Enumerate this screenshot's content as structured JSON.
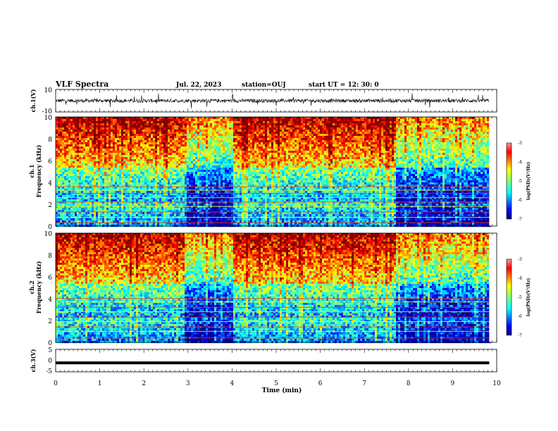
{
  "header": {
    "title": "VLF Spectra",
    "date": "Jul. 22, 2023",
    "station": "station=OUJ",
    "start": "start  UT =  12: 30: 0"
  },
  "chart_data": [
    {
      "type": "line",
      "panel": "waveform-ch1",
      "ylabel": "ch.1(V)",
      "ylim": [
        -10,
        10
      ],
      "y_ticks": [
        "10",
        "-10"
      ],
      "x_range_min": [
        0,
        9.83
      ],
      "description_values": "broadband noise waveform around 0 V with frequent spikes up to about ±8 V"
    },
    {
      "type": "heatmap",
      "panel": "spectrogram-ch1",
      "ylabel_lines": [
        "ch.1",
        "Frequency  (kHz)"
      ],
      "ylim": [
        0,
        10
      ],
      "y_ticks": [
        "0",
        "2",
        "4",
        "6",
        "8",
        "10"
      ],
      "colorbar": {
        "label": "log(PSD)(V²/Hz)",
        "range": [
          -7,
          -3
        ],
        "ticks": [
          "-3",
          "-4",
          "-5",
          "-6",
          "-7"
        ]
      },
      "bands_kHz": [
        0.3,
        0.8,
        1.3,
        1.8,
        2.2,
        2.6,
        3.0,
        3.3,
        3.6
      ],
      "quiet_intervals_min": [
        [
          2.9,
          4.0
        ],
        [
          7.7,
          9.83
        ]
      ]
    },
    {
      "type": "heatmap",
      "panel": "spectrogram-ch2",
      "ylabel_lines": [
        "ch.2",
        "Frequency  (kHz)"
      ],
      "ylim": [
        0,
        10
      ],
      "y_ticks": [
        "0",
        "2",
        "4",
        "6",
        "8",
        "10"
      ],
      "colorbar": {
        "label": "log(PSD)(V²/Hz)",
        "range": [
          -7,
          -3
        ],
        "ticks": [
          "-3",
          "-4",
          "-5",
          "-6",
          "-7"
        ]
      },
      "bands_kHz": [
        0.4,
        1.0,
        1.4,
        1.9,
        2.3,
        2.8,
        3.2,
        3.7,
        4.0
      ],
      "quiet_intervals_min": [
        [
          2.9,
          4.0
        ],
        [
          7.7,
          9.83
        ]
      ]
    },
    {
      "type": "line",
      "panel": "waveform-ch3",
      "ylabel": "ch.3(V)",
      "ylim": [
        -5,
        5
      ],
      "y_ticks": [
        "5",
        "0",
        "-5"
      ],
      "x_range_min": [
        0,
        9.83
      ],
      "constant_value_V": -1
    }
  ],
  "xaxis": {
    "label": "Time  (min)",
    "range": [
      0,
      10
    ],
    "ticks": [
      "0",
      "1",
      "2",
      "3",
      "4",
      "5",
      "6",
      "7",
      "8",
      "9",
      "10"
    ]
  },
  "colors": {
    "jet": [
      "#00007f",
      "#0000ff",
      "#007fff",
      "#00ffff",
      "#7fff7f",
      "#ffff00",
      "#ff7f00",
      "#ff0000",
      "#7f0000"
    ]
  }
}
